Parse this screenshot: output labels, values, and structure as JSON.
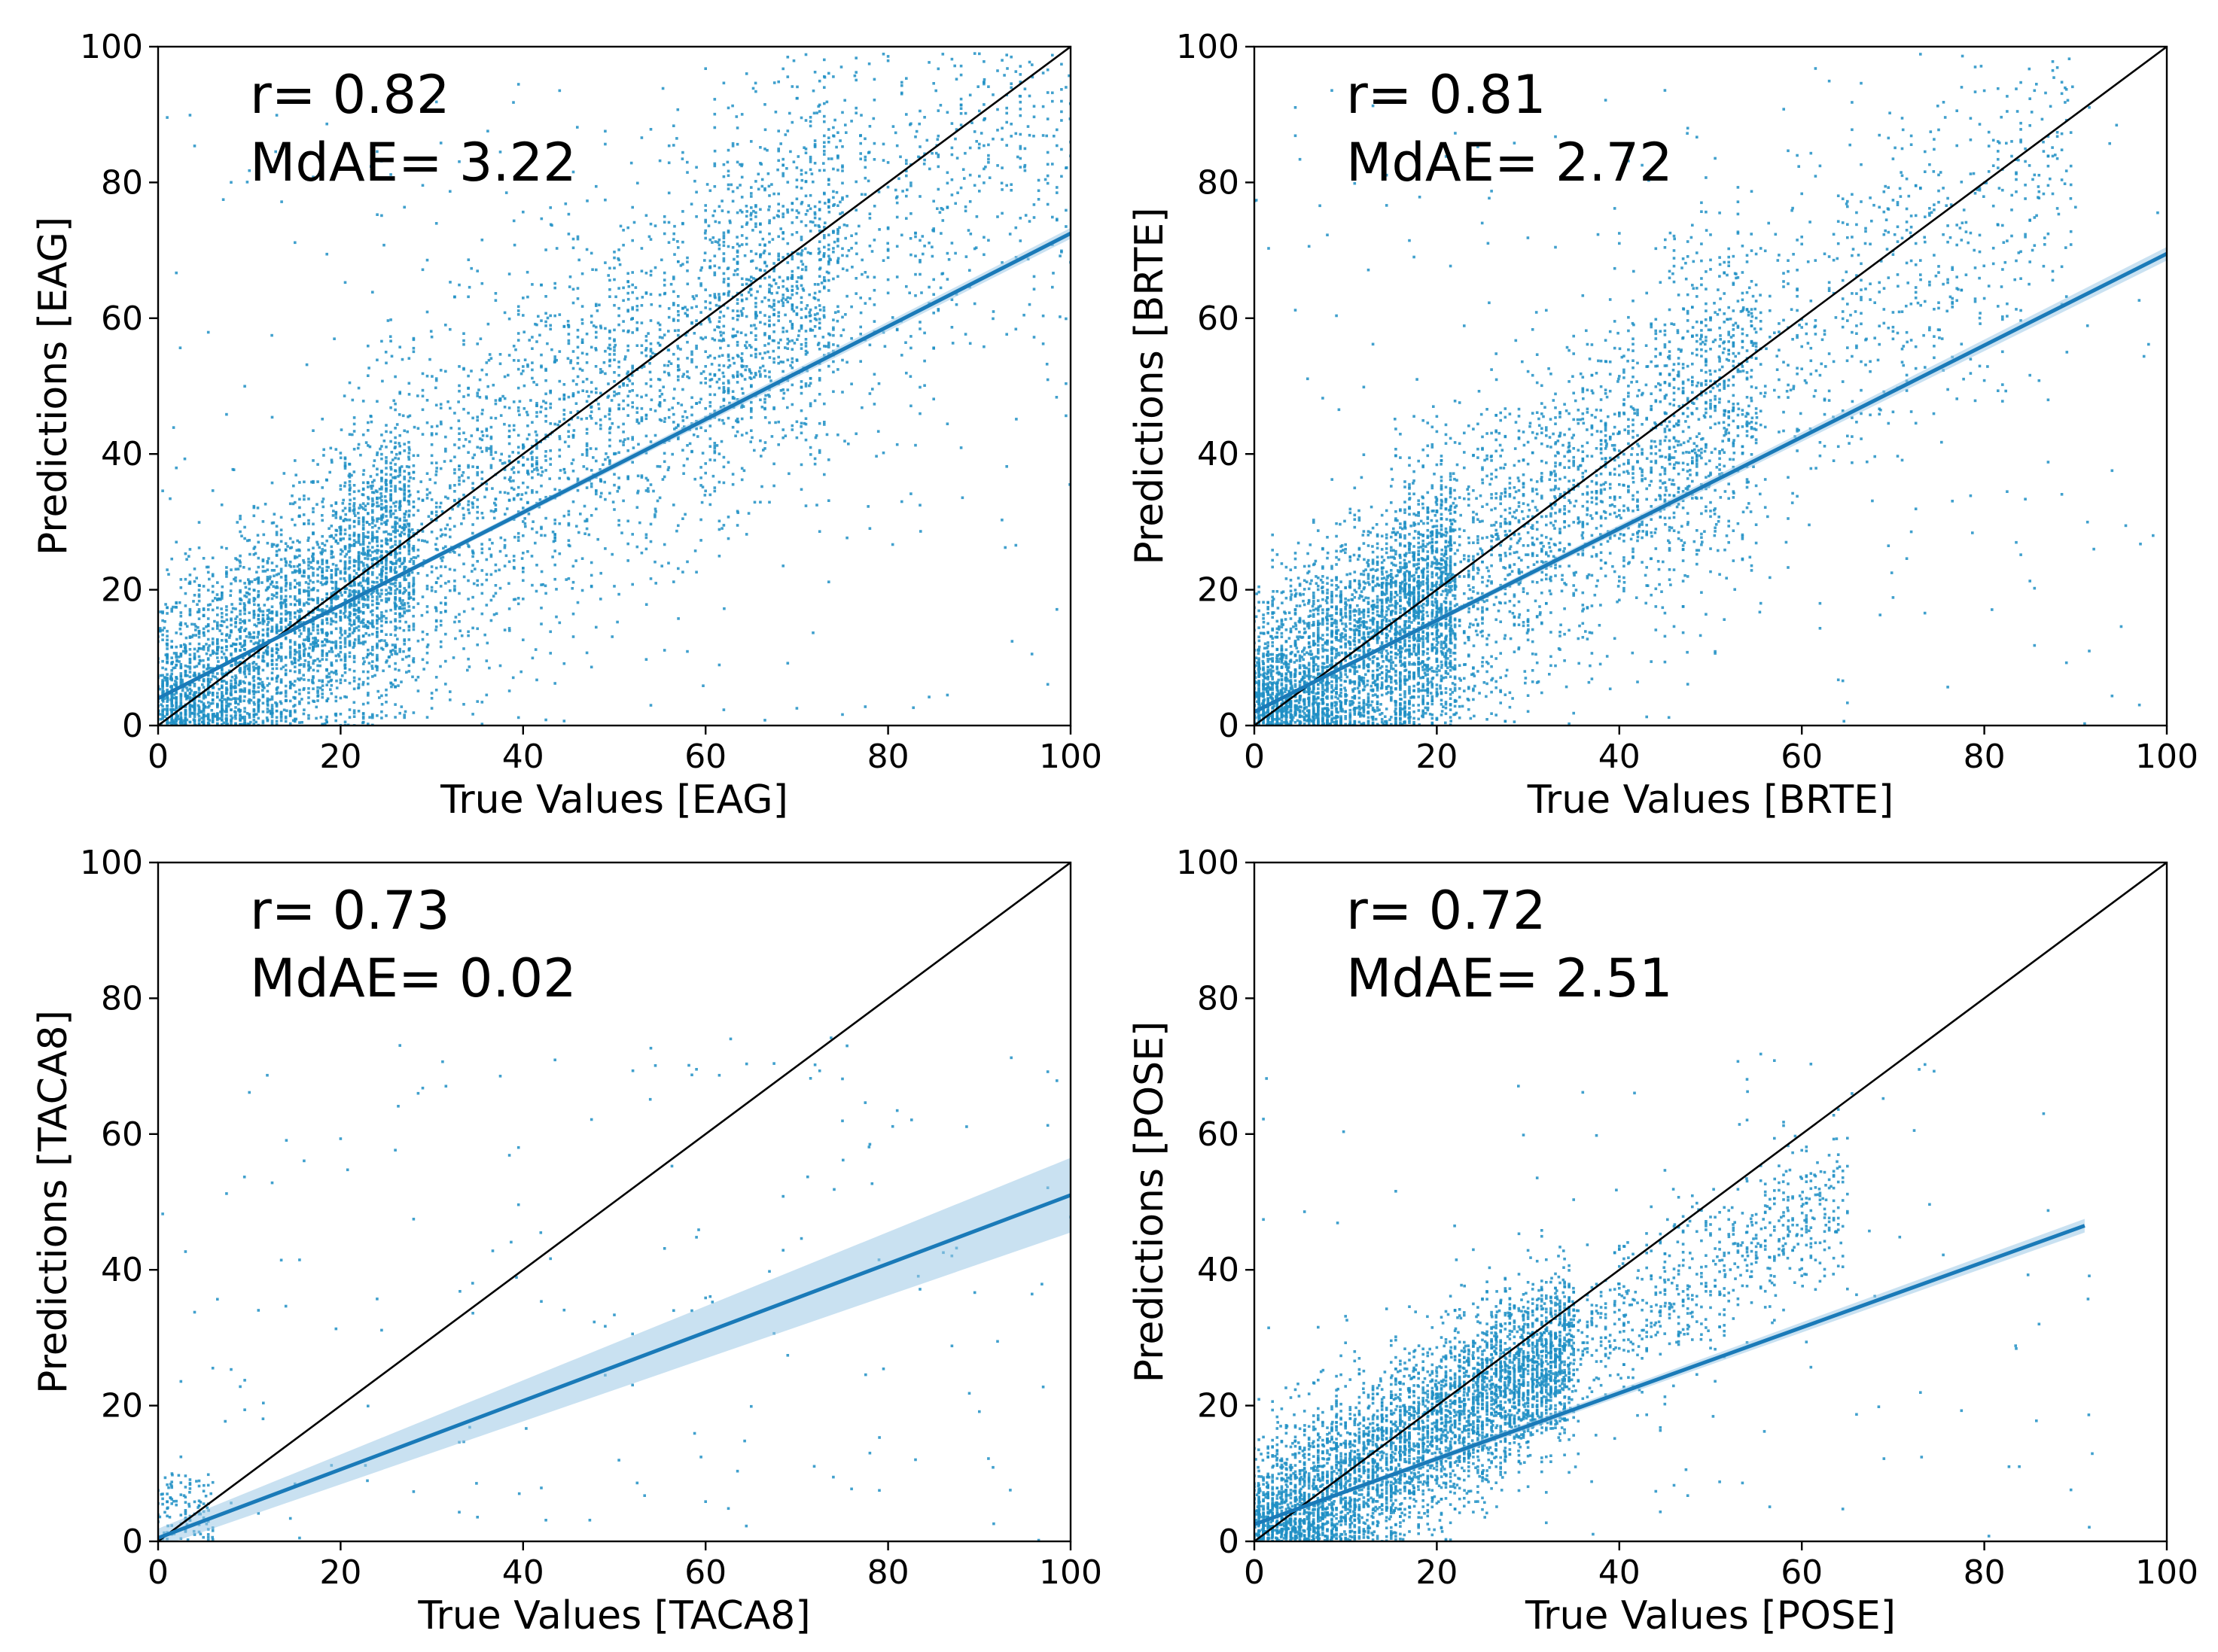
{
  "figure": {
    "layout": "2x2 grid of regression scatter plots"
  },
  "colors": {
    "scatter": "#1f8fc4",
    "fit_line": "#1a7ab8",
    "ci_band": "#9cc9e6",
    "identity_line": "#000000"
  },
  "chart_data": [
    {
      "type": "scatter",
      "id": "eag",
      "xlabel": "True Values [EAG]",
      "ylabel": "Predictions [EAG]",
      "xlim": [
        0,
        100
      ],
      "ylim": [
        0,
        100
      ],
      "xticks": [
        "0",
        "20",
        "40",
        "60",
        "80",
        "100"
      ],
      "yticks": [
        "0",
        "20",
        "40",
        "60",
        "80",
        "100"
      ],
      "annotation_r": "r= 0.82",
      "annotation_mdae": "MdAE= 3.22",
      "identity_line": [
        [
          0,
          0
        ],
        [
          100,
          100
        ]
      ],
      "fit_line": {
        "x0": 0,
        "y0": 4.0,
        "x1": 100,
        "y1": 72.5,
        "ci_halfwidth_end": 0.8
      },
      "point_clusters": [
        {
          "count": 3200,
          "x_range": [
            0,
            28
          ],
          "mean_y_fraction": 0.75,
          "spread": 9
        },
        {
          "count": 2600,
          "x_range": [
            20,
            75
          ],
          "mean_y_fraction": 0.8,
          "spread": 14
        },
        {
          "count": 900,
          "x_range": [
            60,
            100
          ],
          "mean_y_fraction": 0.8,
          "spread": 15
        },
        {
          "count": 250,
          "x_range": [
            0,
            100
          ],
          "y_range": [
            0,
            95
          ]
        }
      ]
    },
    {
      "type": "scatter",
      "id": "brte",
      "xlabel": "True Values [BRTE]",
      "ylabel": "Predictions [BRTE]",
      "xlim": [
        0,
        100
      ],
      "ylim": [
        0,
        100
      ],
      "xticks": [
        "0",
        "20",
        "40",
        "60",
        "80",
        "100"
      ],
      "yticks": [
        "0",
        "20",
        "40",
        "60",
        "80",
        "100"
      ],
      "annotation_r": "r= 0.81",
      "annotation_mdae": "MdAE= 2.72",
      "identity_line": [
        [
          0,
          0
        ],
        [
          100,
          100
        ]
      ],
      "fit_line": {
        "x0": 0,
        "y0": 2.0,
        "x1": 100,
        "y1": 69.5,
        "ci_halfwidth_end": 1.0
      },
      "point_clusters": [
        {
          "count": 3400,
          "x_range": [
            0,
            22
          ],
          "mean_y_fraction": 0.7,
          "spread": 9
        },
        {
          "count": 2200,
          "x_range": [
            15,
            55
          ],
          "mean_y_fraction": 0.75,
          "spread": 12
        },
        {
          "count": 800,
          "x_range": [
            45,
            90
          ],
          "mean_y_fraction": 0.8,
          "spread": 13
        },
        {
          "count": 200,
          "x_range": [
            0,
            100
          ],
          "y_range": [
            0,
            95
          ]
        }
      ]
    },
    {
      "type": "scatter",
      "id": "taca8",
      "xlabel": "True Values [TACA8]",
      "ylabel": "Predictions [TACA8]",
      "xlim": [
        0,
        100
      ],
      "ylim": [
        0,
        100
      ],
      "xticks": [
        "0",
        "20",
        "40",
        "60",
        "80",
        "100"
      ],
      "yticks": [
        "0",
        "20",
        "40",
        "60",
        "80",
        "100"
      ],
      "annotation_r": "r= 0.73",
      "annotation_mdae": "MdAE= 0.02",
      "identity_line": [
        [
          0,
          0
        ],
        [
          100,
          100
        ]
      ],
      "fit_line": {
        "x0": 0,
        "y0": 0.5,
        "x1": 100,
        "y1": 51.0,
        "ci_halfwidth_end": 5.5
      },
      "point_clusters": [
        {
          "count": 120,
          "x_range": [
            0,
            6
          ],
          "y_range": [
            0,
            10
          ]
        },
        {
          "count": 170,
          "x_range": [
            0,
            100
          ],
          "y_range": [
            0,
            75
          ]
        }
      ]
    },
    {
      "type": "scatter",
      "id": "pose",
      "xlabel": "True Values [POSE]",
      "ylabel": "Predictions [POSE]",
      "xlim": [
        0,
        100
      ],
      "ylim": [
        0,
        100
      ],
      "xticks": [
        "0",
        "20",
        "40",
        "60",
        "80",
        "100"
      ],
      "yticks": [
        "0",
        "20",
        "40",
        "60",
        "80",
        "100"
      ],
      "annotation_r": "r= 0.72",
      "annotation_mdae": "MdAE= 2.51",
      "identity_line": [
        [
          0,
          0
        ],
        [
          100,
          100
        ]
      ],
      "fit_line": {
        "x0": 0,
        "y0": 2.5,
        "x1": 91,
        "y1": 46.5,
        "ci_halfwidth_end": 1.0
      },
      "point_clusters": [
        {
          "count": 4500,
          "x_range": [
            0,
            35
          ],
          "mean_y_fraction": 0.6,
          "spread": 6.5
        },
        {
          "count": 900,
          "x_range": [
            25,
            65
          ],
          "mean_y_fraction": 0.55,
          "spread": 6
        },
        {
          "count": 120,
          "x_range": [
            0,
            92
          ],
          "y_range": [
            0,
            72
          ]
        }
      ]
    }
  ]
}
